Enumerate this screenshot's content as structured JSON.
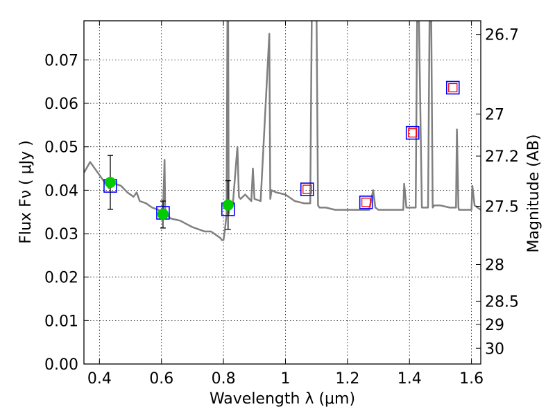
{
  "chart_data": {
    "type": "line",
    "xlabel": "Wavelength  λ (μm)",
    "ylabel": "Flux  Fν  ( μJy )",
    "y2label": "Magnitude (AB)",
    "xlim": [
      0.35,
      1.63
    ],
    "ylim": [
      0.0,
      0.079
    ],
    "grid": true,
    "x_ticks": [
      0.4,
      0.6,
      0.8,
      1.0,
      1.2,
      1.4,
      1.6
    ],
    "x_tick_labels": [
      "0.4",
      "0.6",
      "0.8",
      "1",
      "1.2",
      "1.4",
      "1.6"
    ],
    "y_ticks": [
      0.0,
      0.01,
      0.02,
      0.03,
      0.04,
      0.05,
      0.06,
      0.07
    ],
    "y_tick_labels": [
      "0.00",
      "0.01",
      "0.02",
      "0.03",
      "0.04",
      "0.05",
      "0.06",
      "0.07"
    ],
    "y2_ticks": [
      26.7,
      27.0,
      27.2,
      27.5,
      28.0,
      28.5,
      29.0,
      30.0
    ],
    "y2_tick_labels": [
      "26.7",
      "27",
      "27.2",
      "27.5",
      "28",
      "28.5",
      "29",
      "30"
    ],
    "spectrum": {
      "color": "#808080",
      "x": [
        0.35,
        0.37,
        0.39,
        0.41,
        0.43,
        0.45,
        0.47,
        0.49,
        0.51,
        0.52,
        0.53,
        0.55,
        0.57,
        0.59,
        0.6,
        0.605,
        0.61,
        0.612,
        0.615,
        0.63,
        0.66,
        0.7,
        0.74,
        0.76,
        0.79,
        0.795,
        0.8,
        0.805,
        0.81,
        0.813,
        0.815,
        0.817,
        0.82,
        0.83,
        0.845,
        0.85,
        0.855,
        0.87,
        0.89,
        0.895,
        0.9,
        0.92,
        0.948,
        0.951,
        0.955,
        0.97,
        1.0,
        1.03,
        1.06,
        1.08,
        1.085,
        1.09,
        1.1,
        1.105,
        1.11,
        1.13,
        1.16,
        1.19,
        1.22,
        1.25,
        1.27,
        1.283,
        1.29,
        1.3,
        1.33,
        1.36,
        1.38,
        1.383,
        1.39,
        1.4,
        1.42,
        1.425,
        1.43,
        1.44,
        1.45,
        1.46,
        1.465,
        1.47,
        1.475,
        1.48,
        1.5,
        1.53,
        1.55,
        1.553,
        1.558,
        1.56,
        1.58,
        1.6,
        1.603,
        1.61,
        1.63
      ],
      "y": [
        0.044,
        0.0465,
        0.0445,
        0.0425,
        0.0405,
        0.0415,
        0.041,
        0.0395,
        0.0385,
        0.0395,
        0.0375,
        0.037,
        0.036,
        0.0355,
        0.035,
        0.0355,
        0.047,
        0.036,
        0.0345,
        0.0335,
        0.033,
        0.0315,
        0.0305,
        0.0305,
        0.029,
        0.0285,
        0.0285,
        0.031,
        0.0345,
        0.082,
        0.082,
        0.0345,
        0.036,
        0.0365,
        0.05,
        0.0385,
        0.038,
        0.039,
        0.0375,
        0.045,
        0.038,
        0.0375,
        0.076,
        0.038,
        0.04,
        0.0395,
        0.039,
        0.0375,
        0.037,
        0.037,
        0.082,
        0.082,
        0.082,
        0.0365,
        0.036,
        0.036,
        0.0355,
        0.0355,
        0.0355,
        0.0355,
        0.0355,
        0.04,
        0.036,
        0.0355,
        0.0355,
        0.0355,
        0.0355,
        0.0415,
        0.036,
        0.036,
        0.036,
        0.082,
        0.082,
        0.036,
        0.036,
        0.036,
        0.082,
        0.082,
        0.036,
        0.0365,
        0.0365,
        0.036,
        0.036,
        0.054,
        0.036,
        0.0355,
        0.0355,
        0.0355,
        0.041,
        0.0365,
        0.0355
      ]
    },
    "observed_points": {
      "color": "#00cc00",
      "x": [
        0.435,
        0.605,
        0.815
      ],
      "y": [
        0.0418,
        0.0345,
        0.0366
      ],
      "yerr_low": [
        0.0062,
        0.0032,
        0.0056
      ],
      "yerr_high": [
        0.0062,
        0.003,
        0.0056
      ]
    },
    "model_blue_squares": {
      "color": "#0000ff",
      "x": [
        0.435,
        0.605,
        0.815,
        1.07,
        1.26,
        1.41,
        1.54
      ],
      "y": [
        0.041,
        0.0348,
        0.0356,
        0.0402,
        0.0372,
        0.0532,
        0.0636
      ]
    },
    "model_red_squares": {
      "color": "#ff0000",
      "x": [
        1.07,
        1.26,
        1.41,
        1.54
      ],
      "y": [
        0.0402,
        0.0372,
        0.0532,
        0.0636
      ]
    }
  }
}
